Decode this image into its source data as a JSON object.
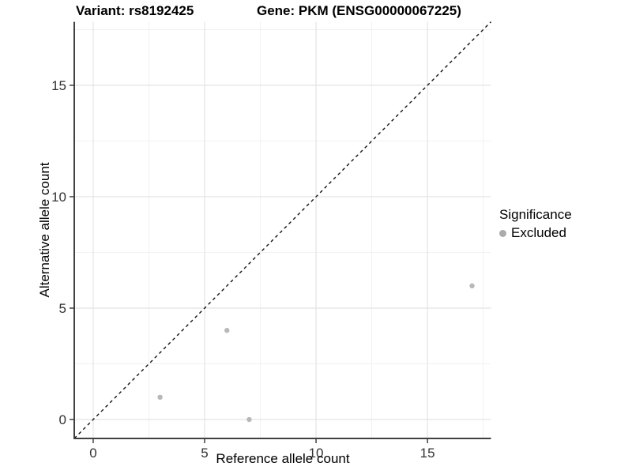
{
  "chart_data": {
    "type": "scatter",
    "title_left": "Variant: rs8192425",
    "title_right": "Gene: PKM (ENSG00000067225)",
    "xlabel": "Reference allele count",
    "ylabel": "Alternative allele count",
    "xlim": [
      -0.85,
      17.85
    ],
    "ylim": [
      -0.85,
      17.85
    ],
    "x_major_ticks": [
      0,
      5,
      10,
      15
    ],
    "y_major_ticks": [
      0,
      5,
      10,
      15
    ],
    "x_minor_gridlines": [
      2.5,
      7.5,
      12.5,
      17.5
    ],
    "y_minor_gridlines": [
      2.5,
      7.5,
      12.5,
      17.5
    ],
    "grid": true,
    "series": [
      {
        "name": "Excluded",
        "color": "#b8b8b8",
        "points": [
          [
            3,
            1
          ],
          [
            6,
            4
          ],
          [
            7,
            0
          ],
          [
            17,
            6
          ]
        ]
      }
    ],
    "reference_line": {
      "type": "identity",
      "slope": 1,
      "intercept": 0,
      "style": "dashed",
      "color": "#111111"
    },
    "legend": {
      "title": "Significance",
      "position": "right",
      "items": [
        {
          "label": "Excluded",
          "color": "#ababab"
        }
      ]
    },
    "colors": {
      "grid_major": "#e4e4e4",
      "grid_minor": "#f1f1f1",
      "axis_line": "#404040",
      "tick_mark": "#333333",
      "tick_label": "#333333"
    }
  }
}
